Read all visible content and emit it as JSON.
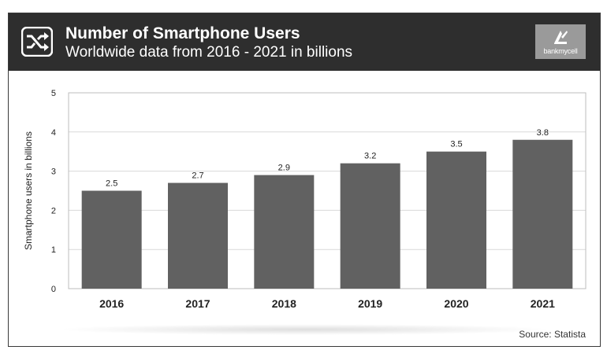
{
  "header": {
    "title": "Number of Smartphone Users",
    "subtitle": "Worldwide data from 2016 - 2021 in billions",
    "icon": "shuffle-arrows-icon",
    "logo_text": "bankmycell"
  },
  "source": "Source: Statista",
  "colors": {
    "header_bg": "#2e2e2e",
    "bar": "#616161",
    "grid": "#d9d9d9",
    "logo_bg": "#9a9a9a"
  },
  "chart_data": {
    "type": "bar",
    "categories": [
      "2016",
      "2017",
      "2018",
      "2019",
      "2020",
      "2021"
    ],
    "values": [
      2.5,
      2.7,
      2.9,
      3.2,
      3.5,
      3.8
    ],
    "data_labels": [
      "2.5",
      "2.7",
      "2.9",
      "3.2",
      "3.5",
      "3.8"
    ],
    "ylabel": "Smartphone users in billions",
    "ylim": [
      0,
      5
    ],
    "yticks": [
      0,
      1,
      2,
      3,
      4,
      5
    ],
    "grid": true,
    "legend": "none"
  }
}
